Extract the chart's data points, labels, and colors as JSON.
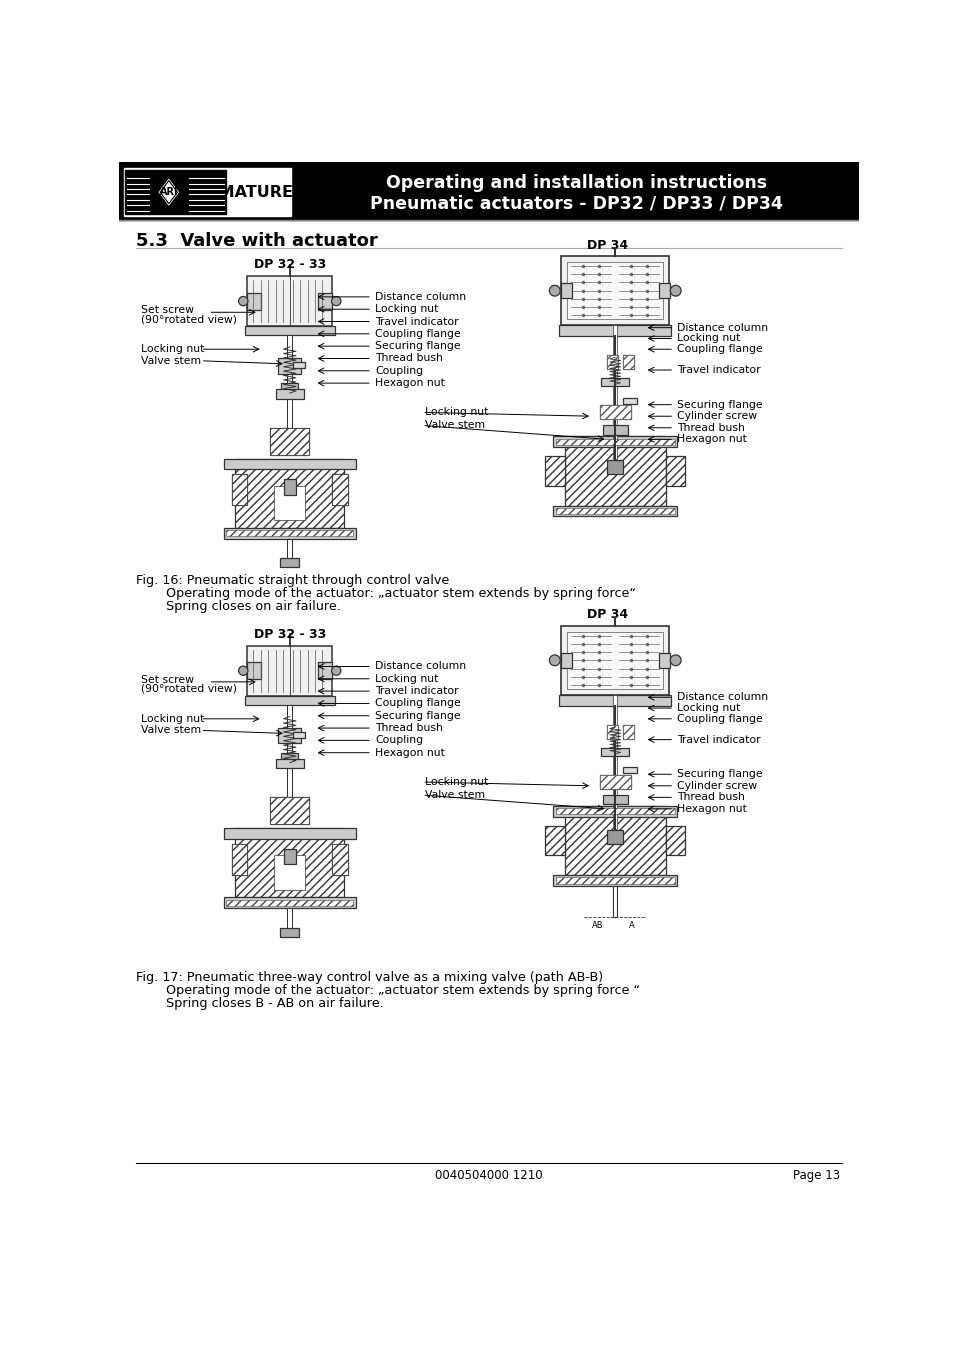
{
  "page_bg": "#ffffff",
  "header_bg": "#000000",
  "header_line1": "Operating and installation instructions",
  "header_line2": "Pneumatic actuators - DP32 / DP33 / DP34",
  "section_title": "5.3  Valve with actuator",
  "fig16_caption_line1": "Fig. 16: Pneumatic straight through control valve",
  "fig16_caption_line2": "Operating mode of the actuator: „actuator stem extends by spring force“",
  "fig16_caption_line3": "Spring closes on air failure.",
  "fig17_caption_line1": "Fig. 17: Pneumatic three-way control valve as a mixing valve (path AB-B)",
  "fig17_caption_line2": "Operating mode of the actuator: „actuator stem extends by spring force “",
  "fig17_caption_line3": "Spring closes B - AB on air failure.",
  "footer_left": "0040504000 1210",
  "footer_right": "Page 13",
  "dp3233_label": "DP 32 - 33",
  "dp34_label1": "DP 34",
  "dp34_label2": "DP 34"
}
